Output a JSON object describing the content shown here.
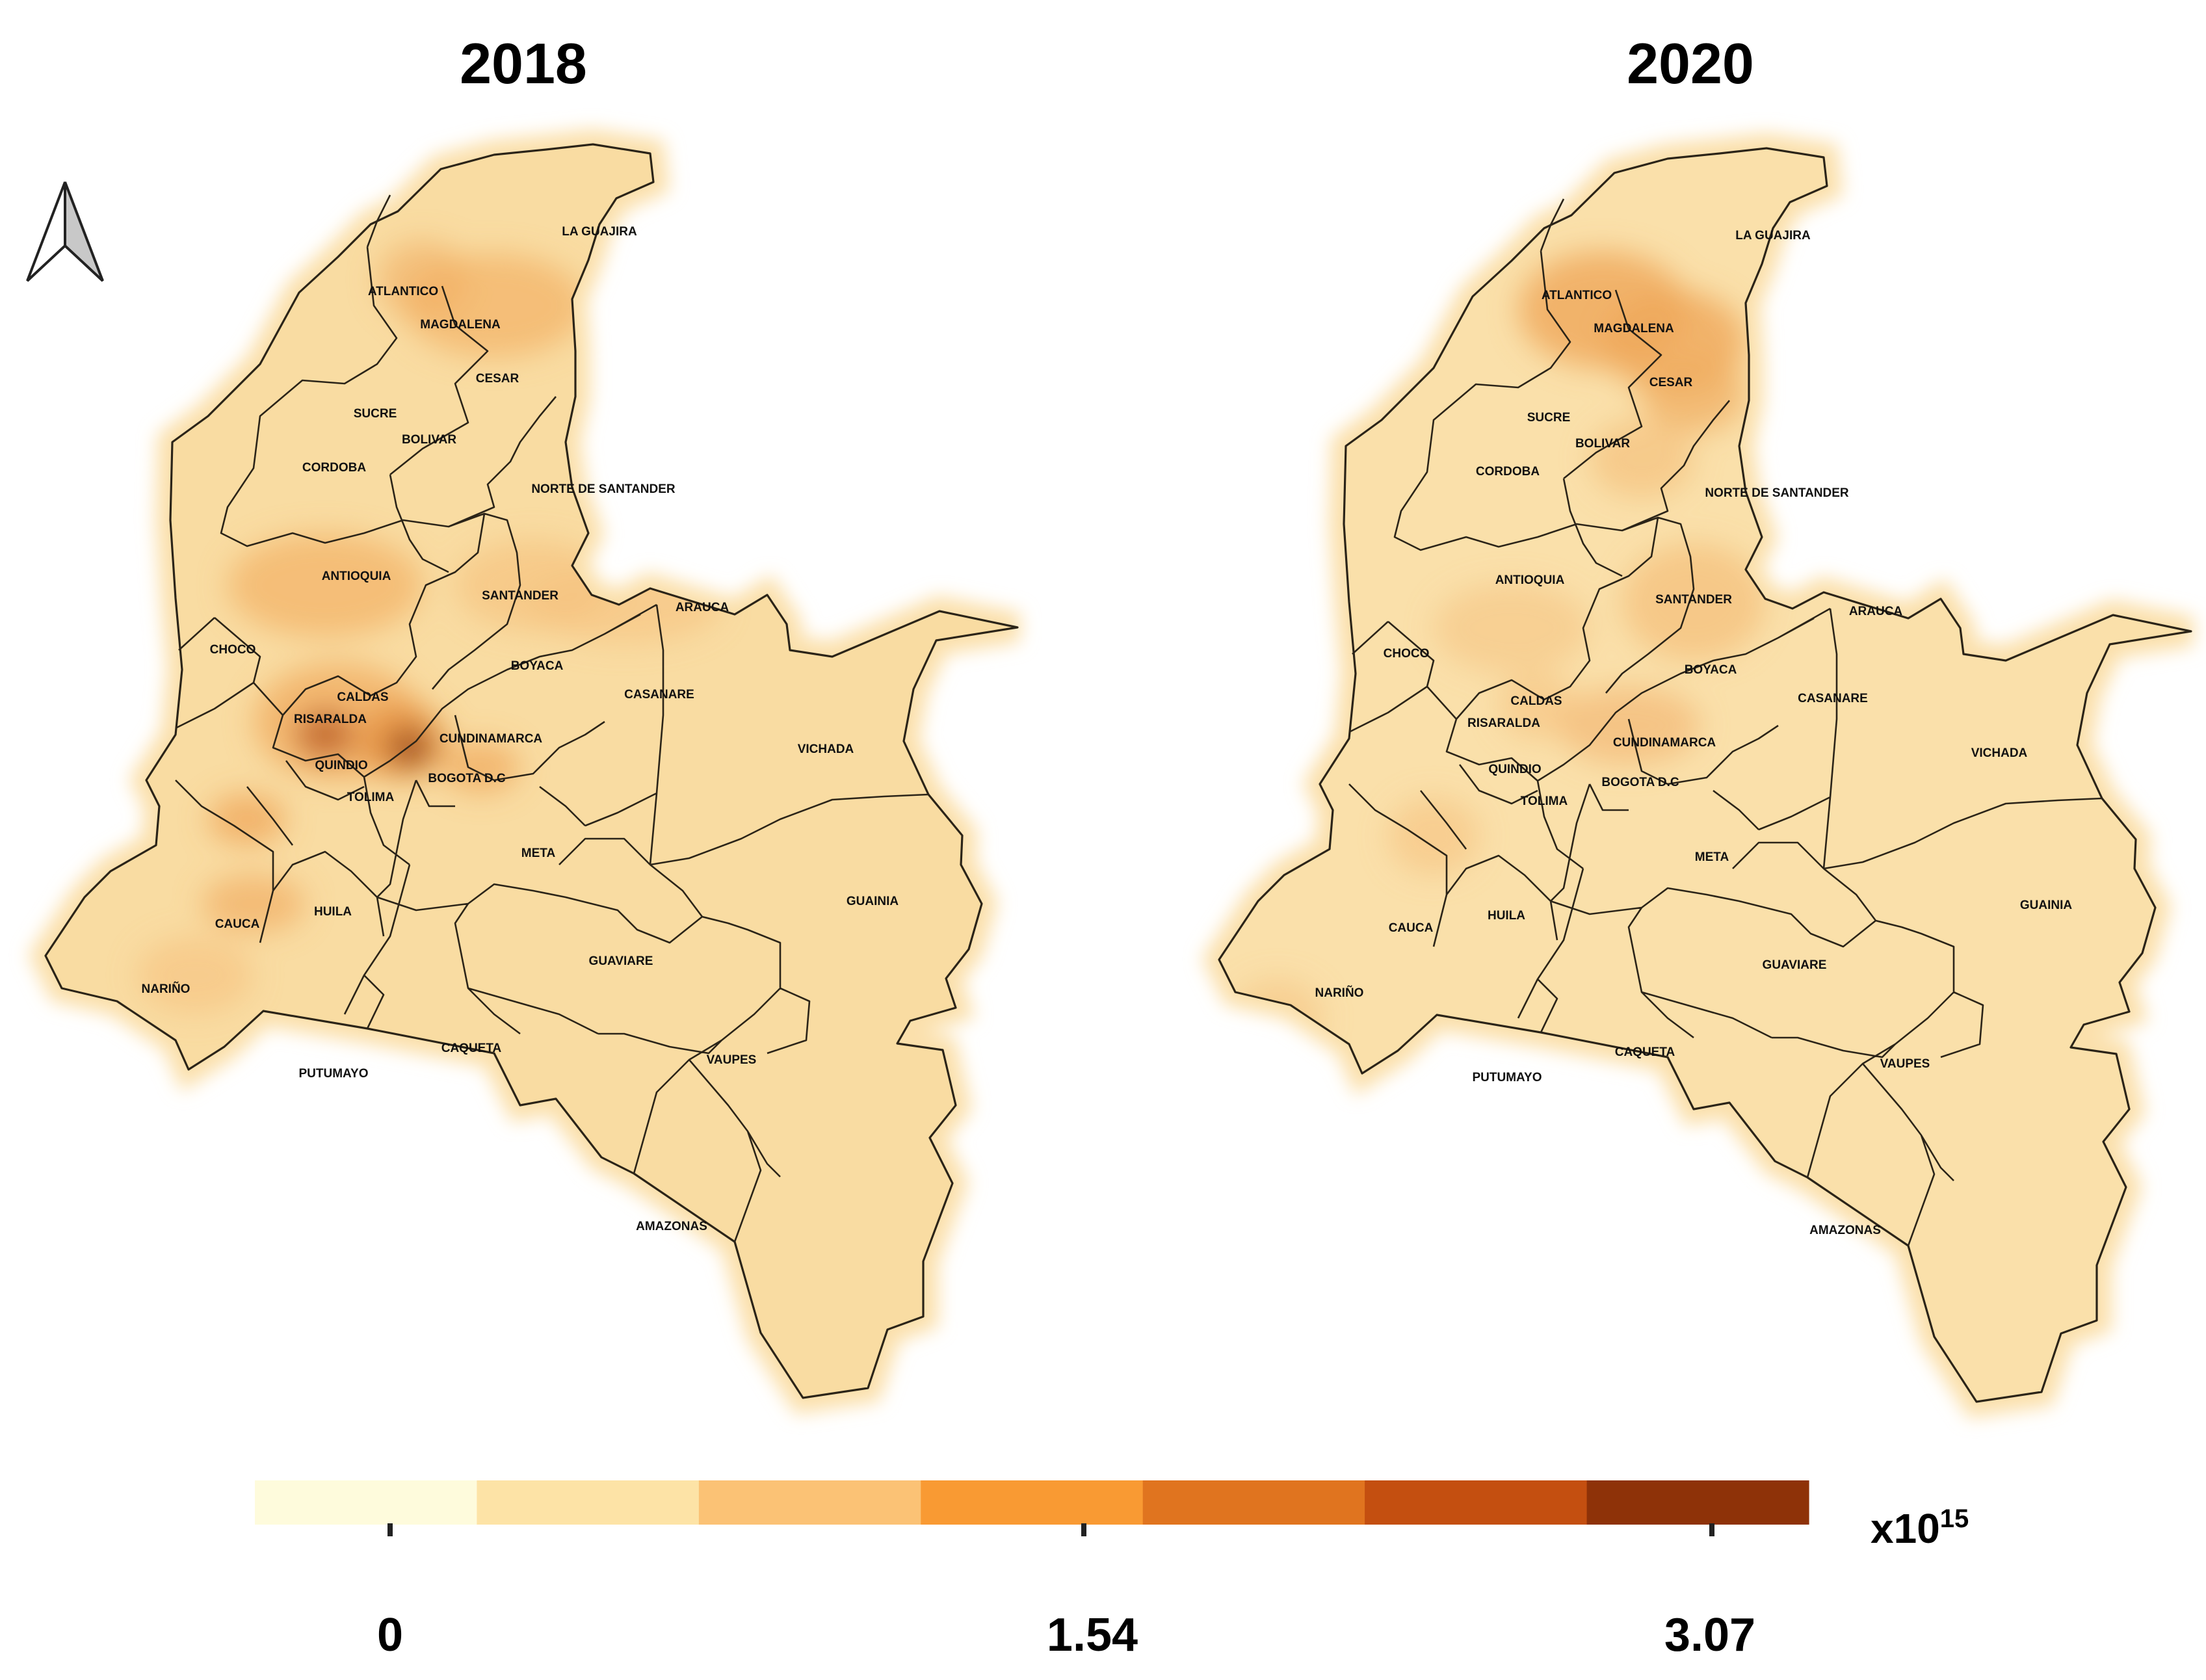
{
  "panels": [
    {
      "year": "2018"
    },
    {
      "year": "2020"
    }
  ],
  "departments": [
    "LA GUAJIRA",
    "ATLANTICO",
    "MAGDALENA",
    "CESAR",
    "SUCRE",
    "BOLIVAR",
    "CORDOBA",
    "NORTE DE SANTANDER",
    "ANTIOQUIA",
    "SANTANDER",
    "ARAUCA",
    "CHOCO",
    "BOYACA",
    "CALDAS",
    "RISARALDA",
    "CASANARE",
    "CUNDINAMARCA",
    "VICHADA",
    "QUINDIO",
    "BOGOTA D.C",
    "TOLIMA",
    "META",
    "GUAINIA",
    "HUILA",
    "CAUCA",
    "GUAVIARE",
    "NARIÑO",
    "CAQUETA",
    "VAUPES",
    "PUTUMAYO",
    "AMAZONAS"
  ],
  "legend": {
    "colors": [
      "#fefbdc",
      "#fde3a6",
      "#fbc275",
      "#f99a33",
      "#e0741f",
      "#c44f10",
      "#8e3208"
    ],
    "ticks": [
      "0",
      "1.54",
      "3.07"
    ],
    "unit_base": "x10",
    "unit_exponent": "15"
  },
  "north_arrow": "north-arrow-icon"
}
